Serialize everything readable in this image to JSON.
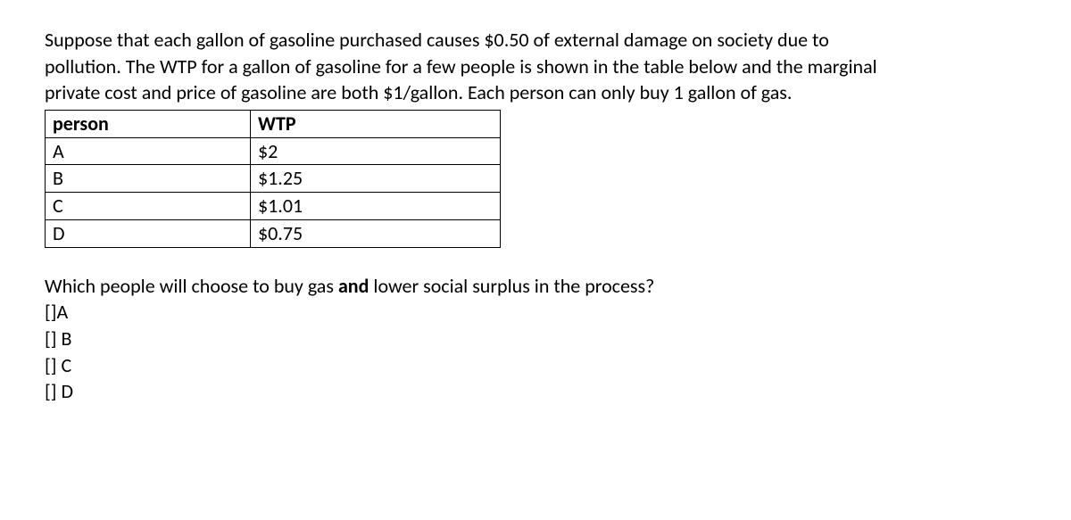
{
  "prompt": {
    "line1": " Suppose that each gallon of gasoline purchased causes $0.50 of external damage on society due to",
    "line2": "pollution. The WTP for a gallon of gasoline for a few people is shown in the table below and the marginal",
    "line3": "private cost and price of gasoline are both $1/gallon. Each person can only buy 1 gallon of gas."
  },
  "table": {
    "header_person": "person",
    "header_wtp": "WTP",
    "rows": [
      {
        "person": "A",
        "wtp": "$2"
      },
      {
        "person": "B",
        "wtp": "$1.25"
      },
      {
        "person": "C",
        "wtp": "$1.01"
      },
      {
        "person": "D",
        "wtp": "$0.75"
      }
    ]
  },
  "question": {
    "pre": "Which people will choose to buy gas ",
    "bold": "and",
    "post": " lower social surplus in the process?"
  },
  "options": {
    "a": "[]A",
    "b": "[] B",
    "c": "[] C",
    "d": "[] D"
  }
}
